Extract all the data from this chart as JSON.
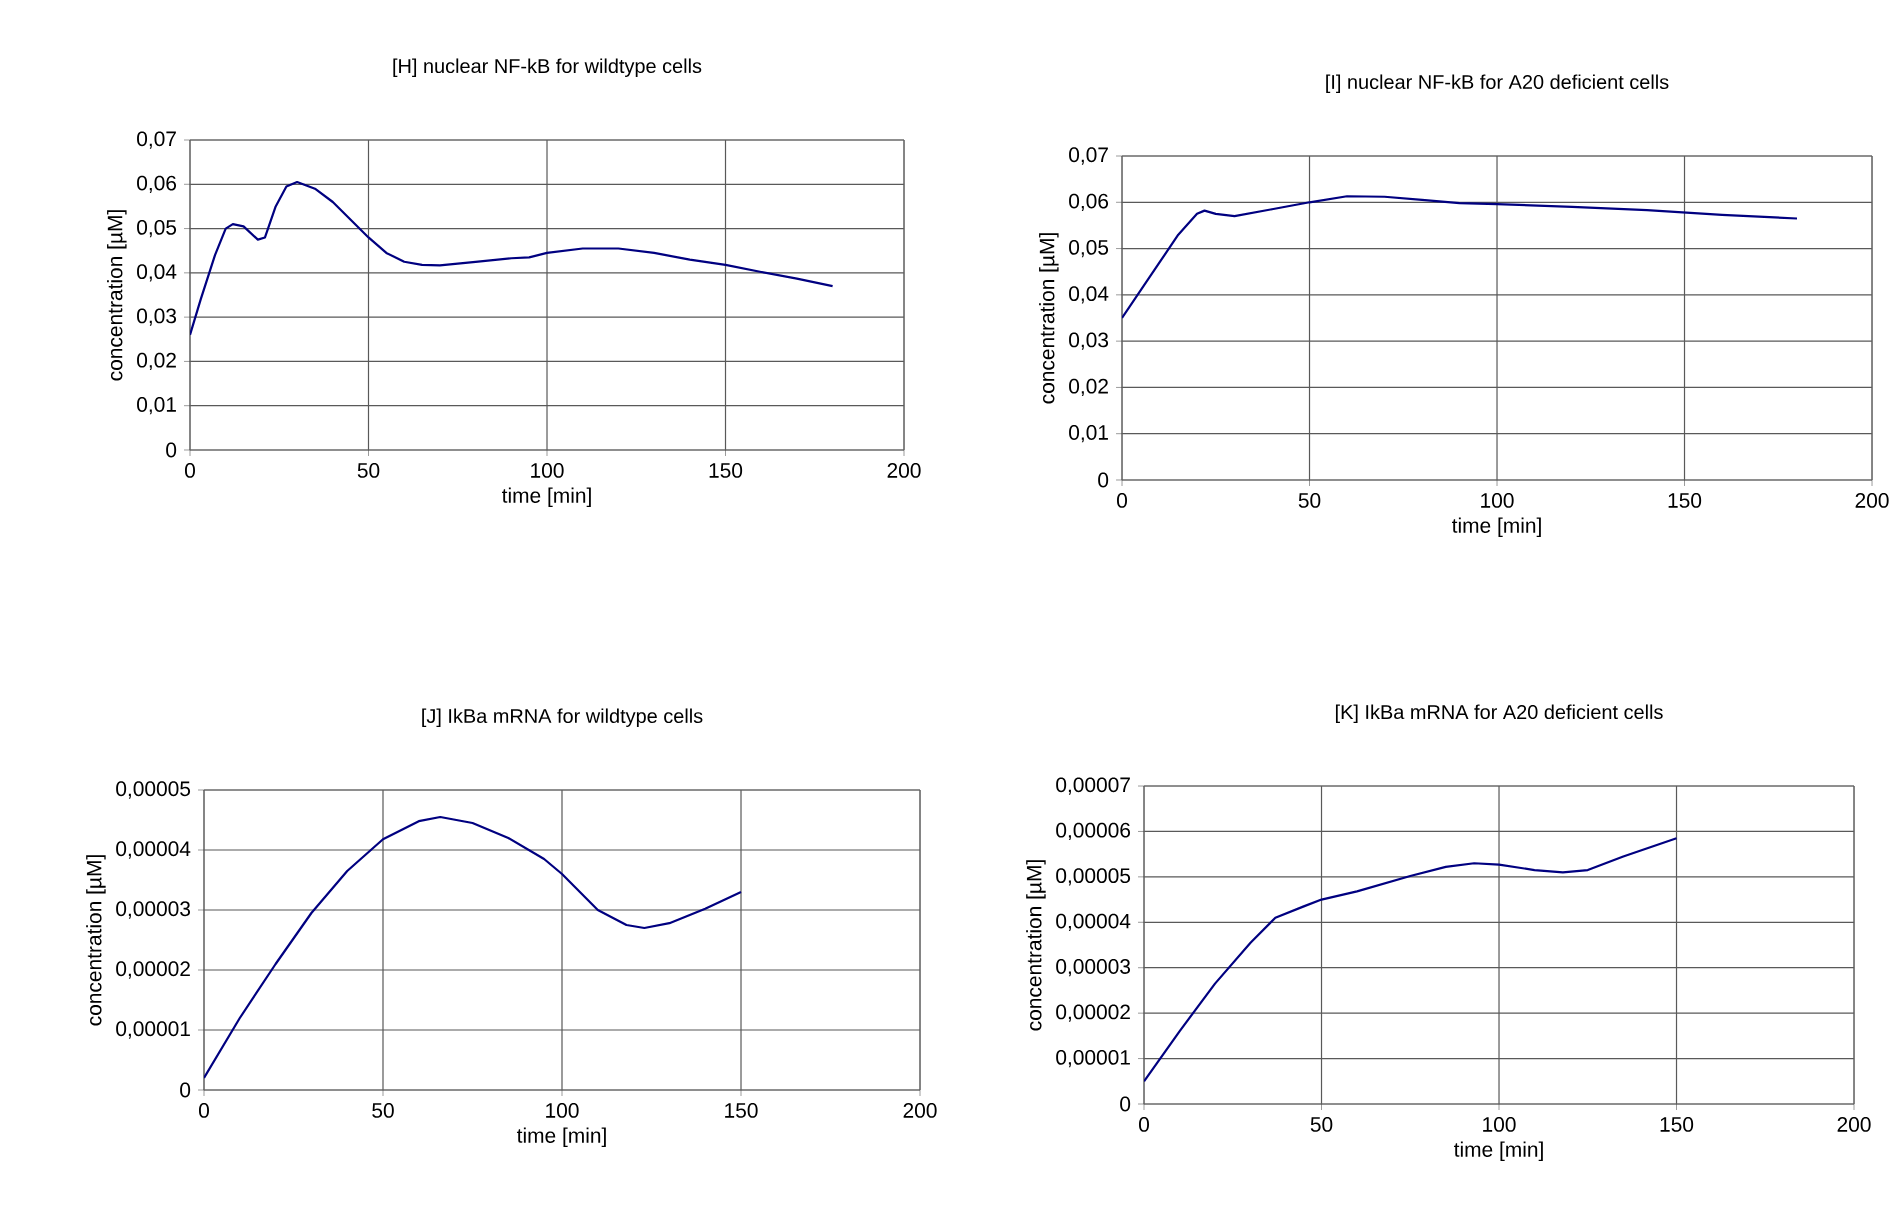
{
  "chart_data": [
    {
      "type": "line",
      "title": "[H]  nuclear NF-kB for wildtype cells",
      "xlabel": "time [min]",
      "ylabel": "concentration [µM]",
      "grid": true,
      "color": "#000080",
      "x": [
        0,
        3,
        7,
        10,
        12,
        15,
        19,
        21,
        24,
        27,
        30,
        35,
        40,
        45,
        50,
        55,
        60,
        65,
        70,
        80,
        90,
        95,
        100,
        110,
        120,
        130,
        140,
        150,
        160,
        170,
        180
      ],
      "values": [
        0.026,
        0.034,
        0.044,
        0.05,
        0.051,
        0.0505,
        0.0475,
        0.048,
        0.055,
        0.0595,
        0.0605,
        0.059,
        0.056,
        0.052,
        0.048,
        0.0445,
        0.0425,
        0.0418,
        0.0417,
        0.0425,
        0.0433,
        0.0435,
        0.0445,
        0.0455,
        0.0455,
        0.0445,
        0.043,
        0.0418,
        0.0402,
        0.0387,
        0.037
      ],
      "xlim": [
        0,
        200
      ],
      "xticks": [
        0,
        50,
        100,
        150,
        200
      ],
      "ylim": [
        0,
        0.07
      ],
      "yticks": [
        0,
        {
          "value": 0.01,
          "label": "0,01"
        },
        {
          "value": 0.02,
          "label": "0,02"
        },
        {
          "value": 0.03,
          "label": "0,03"
        },
        {
          "value": 0.04,
          "label": "0,04"
        },
        {
          "value": 0.05,
          "label": "0,05"
        },
        {
          "value": 0.06,
          "label": "0,06"
        },
        {
          "value": 0.07,
          "label": "0,07"
        }
      ]
    },
    {
      "type": "line",
      "title": "[I]  nuclear NF-kB for A20 deficient cells",
      "xlabel": "time [min]",
      "ylabel": "concentration [µM]",
      "grid": true,
      "color": "#000080",
      "x": [
        0,
        5,
        10,
        15,
        20,
        22,
        25,
        30,
        40,
        50,
        60,
        70,
        80,
        90,
        100,
        120,
        140,
        160,
        180
      ],
      "values": [
        0.035,
        0.041,
        0.047,
        0.053,
        0.0575,
        0.0582,
        0.0575,
        0.057,
        0.0585,
        0.06,
        0.0613,
        0.0612,
        0.0605,
        0.0598,
        0.0596,
        0.059,
        0.0583,
        0.0573,
        0.0565
      ],
      "xlim": [
        0,
        200
      ],
      "xticks": [
        0,
        50,
        100,
        150,
        200
      ],
      "ylim": [
        0,
        0.07
      ],
      "yticks": [
        0,
        {
          "value": 0.01,
          "label": "0,01"
        },
        {
          "value": 0.02,
          "label": "0,02"
        },
        {
          "value": 0.03,
          "label": "0,03"
        },
        {
          "value": 0.04,
          "label": "0,04"
        },
        {
          "value": 0.05,
          "label": "0,05"
        },
        {
          "value": 0.06,
          "label": "0,06"
        },
        {
          "value": 0.07,
          "label": "0,07"
        }
      ]
    },
    {
      "type": "line",
      "title": "[J]  IkBa mRNA for wildtype cells",
      "xlabel": "time [min]",
      "ylabel": "concentration [µM]",
      "grid": true,
      "color": "#000080",
      "x": [
        0,
        10,
        20,
        30,
        40,
        50,
        60,
        66,
        75,
        85,
        95,
        100,
        110,
        118,
        123,
        130,
        140,
        150
      ],
      "values": [
        2e-06,
        1.2e-05,
        2.1e-05,
        2.95e-05,
        3.65e-05,
        4.18e-05,
        4.48e-05,
        4.55e-05,
        4.45e-05,
        4.2e-05,
        3.85e-05,
        3.6e-05,
        3e-05,
        2.75e-05,
        2.7e-05,
        2.78e-05,
        3.02e-05,
        3.3e-05
      ],
      "xlim": [
        0,
        200
      ],
      "xticks": [
        0,
        50,
        100,
        150,
        200
      ],
      "ylim": [
        0,
        5e-05
      ],
      "yticks": [
        0,
        {
          "value": 1e-05,
          "label": "0,00001"
        },
        {
          "value": 2e-05,
          "label": "0,00002"
        },
        {
          "value": 3e-05,
          "label": "0,00003"
        },
        {
          "value": 4e-05,
          "label": "0,00004"
        },
        {
          "value": 5e-05,
          "label": "0,00005"
        }
      ]
    },
    {
      "type": "line",
      "title": "[K]   IkBa mRNA for A20 deficient cells",
      "xlabel": "time [min]",
      "ylabel": "concentration [µM]",
      "grid": true,
      "color": "#000080",
      "x": [
        0,
        10,
        20,
        30,
        37,
        45,
        50,
        60,
        75,
        85,
        93,
        100,
        110,
        118,
        125,
        135,
        150
      ],
      "values": [
        5e-06,
        1.6e-05,
        2.65e-05,
        3.55e-05,
        4.1e-05,
        4.35e-05,
        4.5e-05,
        4.68e-05,
        5.02e-05,
        5.22e-05,
        5.3e-05,
        5.27e-05,
        5.15e-05,
        5.1e-05,
        5.15e-05,
        5.45e-05,
        5.85e-05
      ],
      "xlim": [
        0,
        200
      ],
      "xticks": [
        0,
        50,
        100,
        150,
        200
      ],
      "ylim": [
        0,
        7e-05
      ],
      "yticks": [
        0,
        {
          "value": 1e-05,
          "label": "0,00001"
        },
        {
          "value": 2e-05,
          "label": "0,00002"
        },
        {
          "value": 3e-05,
          "label": "0,00003"
        },
        {
          "value": 4e-05,
          "label": "0,00004"
        },
        {
          "value": 5e-05,
          "label": "0,00005"
        },
        {
          "value": 6e-05,
          "label": "0,00006"
        },
        {
          "value": 7e-05,
          "label": "0,00007"
        }
      ]
    }
  ]
}
